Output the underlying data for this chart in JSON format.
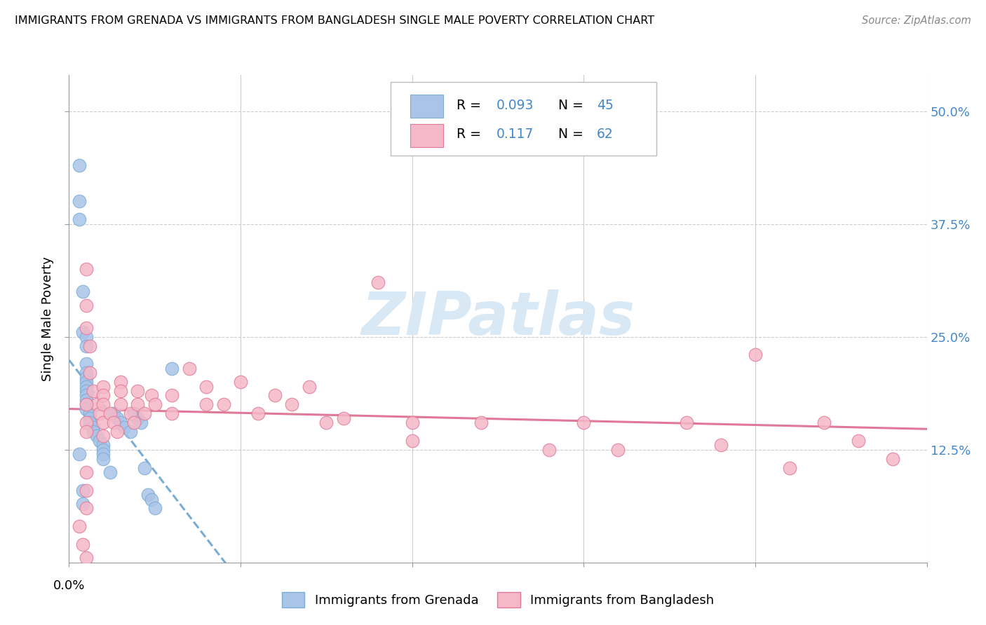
{
  "title": "IMMIGRANTS FROM GRENADA VS IMMIGRANTS FROM BANGLADESH SINGLE MALE POVERTY CORRELATION CHART",
  "source": "Source: ZipAtlas.com",
  "ylabel": "Single Male Poverty",
  "ytick_labels": [
    "50.0%",
    "37.5%",
    "25.0%",
    "12.5%"
  ],
  "ytick_values": [
    0.5,
    0.375,
    0.25,
    0.125
  ],
  "xlim": [
    0.0,
    0.25
  ],
  "ylim": [
    0.0,
    0.54
  ],
  "grenada_color": "#aac4e8",
  "grenada_edge": "#7aadd4",
  "bangladesh_color": "#f5b8c8",
  "bangladesh_edge": "#e07898",
  "trendline_grenada_color": "#7aadd4",
  "trendline_bangladesh_color": "#e07898",
  "axis_color": "#4488cc",
  "grid_color": "#cccccc",
  "watermark_color": "#d8e8f5",
  "watermark_text": "ZIPatlas",
  "grenada_scatter_x": [
    0.003,
    0.003,
    0.003,
    0.003,
    0.004,
    0.004,
    0.004,
    0.004,
    0.005,
    0.005,
    0.005,
    0.005,
    0.005,
    0.005,
    0.005,
    0.005,
    0.005,
    0.005,
    0.005,
    0.005,
    0.006,
    0.006,
    0.006,
    0.007,
    0.007,
    0.008,
    0.009,
    0.01,
    0.01,
    0.01,
    0.01,
    0.012,
    0.013,
    0.014,
    0.015,
    0.016,
    0.018,
    0.019,
    0.02,
    0.021,
    0.022,
    0.023,
    0.024,
    0.025,
    0.03
  ],
  "grenada_scatter_y": [
    0.44,
    0.4,
    0.38,
    0.12,
    0.3,
    0.255,
    0.08,
    0.065,
    0.25,
    0.24,
    0.22,
    0.21,
    0.205,
    0.2,
    0.195,
    0.19,
    0.185,
    0.18,
    0.175,
    0.17,
    0.165,
    0.16,
    0.155,
    0.15,
    0.145,
    0.14,
    0.135,
    0.13,
    0.125,
    0.12,
    0.115,
    0.1,
    0.165,
    0.16,
    0.155,
    0.15,
    0.145,
    0.165,
    0.16,
    0.155,
    0.105,
    0.075,
    0.07,
    0.06,
    0.215
  ],
  "bangladesh_scatter_x": [
    0.003,
    0.004,
    0.005,
    0.005,
    0.005,
    0.005,
    0.006,
    0.006,
    0.007,
    0.008,
    0.009,
    0.01,
    0.01,
    0.01,
    0.01,
    0.01,
    0.012,
    0.013,
    0.014,
    0.015,
    0.015,
    0.015,
    0.018,
    0.019,
    0.02,
    0.02,
    0.022,
    0.024,
    0.025,
    0.03,
    0.03,
    0.035,
    0.04,
    0.04,
    0.045,
    0.05,
    0.055,
    0.06,
    0.065,
    0.07,
    0.075,
    0.08,
    0.09,
    0.1,
    0.1,
    0.12,
    0.14,
    0.15,
    0.16,
    0.18,
    0.19,
    0.2,
    0.21,
    0.22,
    0.23,
    0.24,
    0.005,
    0.005,
    0.005,
    0.005,
    0.005,
    0.005
  ],
  "bangladesh_scatter_y": [
    0.04,
    0.02,
    0.325,
    0.285,
    0.26,
    0.005,
    0.24,
    0.21,
    0.19,
    0.175,
    0.165,
    0.155,
    0.14,
    0.195,
    0.185,
    0.175,
    0.165,
    0.155,
    0.145,
    0.2,
    0.19,
    0.175,
    0.165,
    0.155,
    0.19,
    0.175,
    0.165,
    0.185,
    0.175,
    0.185,
    0.165,
    0.215,
    0.195,
    0.175,
    0.175,
    0.2,
    0.165,
    0.185,
    0.175,
    0.195,
    0.155,
    0.16,
    0.31,
    0.155,
    0.135,
    0.155,
    0.125,
    0.155,
    0.125,
    0.155,
    0.13,
    0.23,
    0.105,
    0.155,
    0.135,
    0.115,
    0.1,
    0.08,
    0.06,
    0.155,
    0.175,
    0.145
  ]
}
